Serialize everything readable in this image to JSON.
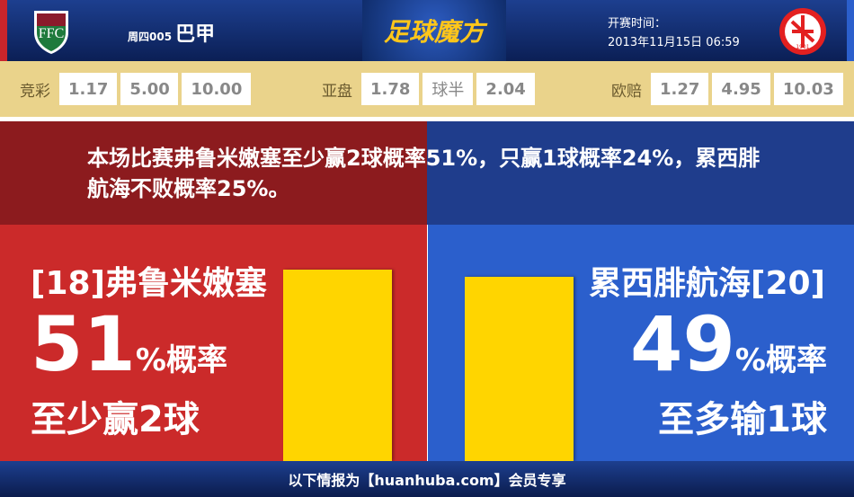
{
  "header": {
    "league_code": "周四005",
    "league_name": "巴甲",
    "brand": "足球魔方",
    "time_label": "开赛时间：",
    "time_value": "2013年11月15日 06:59"
  },
  "odds": [
    {
      "label": "竞彩",
      "values": [
        "1.17",
        "5.00",
        "10.00"
      ]
    },
    {
      "label": "亚盘",
      "values": [
        "1.78",
        "球半",
        "2.04"
      ]
    },
    {
      "label": "欧赔",
      "values": [
        "1.27",
        "4.95",
        "10.03"
      ]
    }
  ],
  "summary": "本场比赛弗鲁米嫩塞至少赢2球概率51%，只赢1球概率24%，累西腓航海不败概率25%。",
  "home": {
    "name": "[18]弗鲁米嫩塞",
    "percent": 51,
    "percent_text": "51",
    "suffix": "%概率",
    "outcome": "至少赢2球",
    "color": "#cb2a2a"
  },
  "away": {
    "name": "累西腓航海[20]",
    "percent": 49,
    "percent_text": "49",
    "suffix": "%概率",
    "outcome": "至多输1球",
    "color": "#2b5fcc"
  },
  "bar_color": "#ffd500",
  "footer": "以下情报为【huanhuba.com】会员专享"
}
